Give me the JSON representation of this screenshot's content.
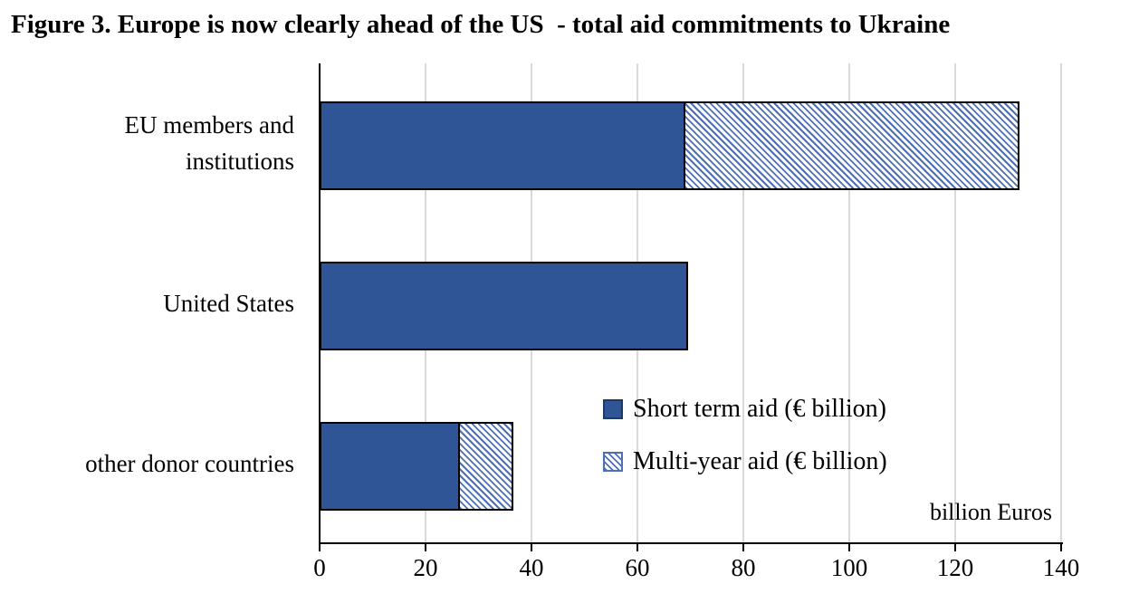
{
  "figure": {
    "title": "Figure 3. Europe is now clearly ahead of the US  - total aid commitments to Ukraine"
  },
  "chart_data": {
    "type": "bar",
    "orientation": "horizontal",
    "stacked": true,
    "title": "Figure 3. Europe is now clearly ahead of the US  - total aid commitments to Ukraine",
    "categories": [
      "EU members and\ninstitutions",
      "United States",
      "other donor countries"
    ],
    "series": [
      {
        "name": "Short term aid (€ billion)",
        "values": [
          69,
          69.5,
          26.5
        ],
        "fill": "solid",
        "color": "#2F5597"
      },
      {
        "name": "Multi-year aid (€ billion)",
        "values": [
          63,
          0,
          10
        ],
        "fill": "diagonal-hatch",
        "color": "#4C6FB5"
      }
    ],
    "totals": [
      132,
      69.5,
      36.5
    ],
    "xlabel": "billion Euros",
    "xlim": [
      0,
      140
    ],
    "xticks": [
      0,
      20,
      40,
      60,
      80,
      100,
      120,
      140
    ],
    "grid": true,
    "legend_position": "inside-lower-right",
    "colors": {
      "solid_fill": "#2F5597",
      "bar_border": "#000000",
      "hatch_stripe": "#4C6FB5",
      "hatch_background": "#FFFFFF",
      "gridline": "#D9D9D9",
      "axis": "#000000",
      "text": "#000000"
    }
  }
}
